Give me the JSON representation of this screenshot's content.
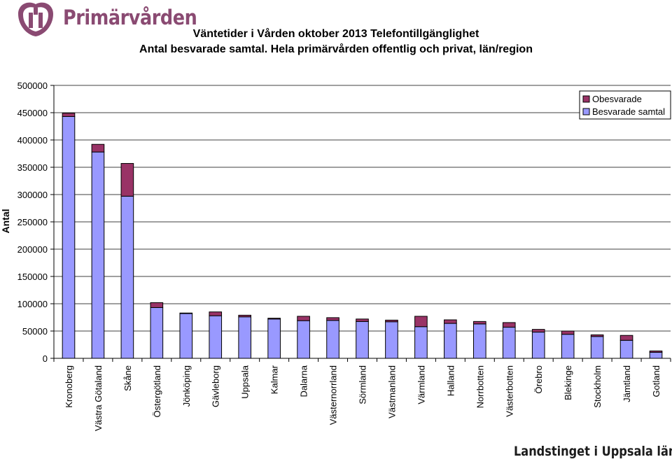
{
  "header": {
    "logo_text": "Primärvården"
  },
  "footer": {
    "text": "Landstinget i Uppsala län"
  },
  "colors": {
    "besvarade": "#9999ff",
    "obesvarade": "#993366",
    "brand": "#8a4a72"
  },
  "chart_data": {
    "type": "bar",
    "stacked": true,
    "title": "Väntetider i Vården oktober 2013 Telefontillgänglighet",
    "subtitle": "Antal besvarade samtal. Hela primärvården offentlig och privat, län/region",
    "ylabel": "Antal",
    "xlabel": "",
    "ylim": [
      0,
      500000
    ],
    "yticks": [
      "0",
      "50000",
      "100000",
      "150000",
      "200000",
      "250000",
      "300000",
      "350000",
      "400000",
      "450000",
      "500000"
    ],
    "grid": true,
    "legend_position": "top-right",
    "categories": [
      "Kronoberg",
      "Västra Götaland",
      "Skåne",
      "Östergötland",
      "Jönköping",
      "Gävleborg",
      "Uppsala",
      "Kalmar",
      "Dalarna",
      "Västernorrland",
      "Sörmland",
      "Västmanland",
      "Värmland",
      "Halland",
      "Norrbotten",
      "Västerbotten",
      "Örebro",
      "Blekinge",
      "Stockholm",
      "Jämtland",
      "Gotland"
    ],
    "series": [
      {
        "name": "Besvarade samtal",
        "values": [
          443000,
          378000,
          297000,
          93000,
          82000,
          78000,
          76000,
          72000,
          69000,
          69500,
          67500,
          67000,
          58000,
          64000,
          63000,
          57000,
          48000,
          44000,
          40000,
          33000,
          11000
        ]
      },
      {
        "name": "Obesvarade",
        "values": [
          6000,
          14000,
          60000,
          9000,
          1000,
          7000,
          3000,
          1500,
          8000,
          5000,
          4500,
          3000,
          19000,
          6500,
          4500,
          8500,
          5000,
          6000,
          3000,
          9000,
          2500
        ]
      }
    ]
  }
}
